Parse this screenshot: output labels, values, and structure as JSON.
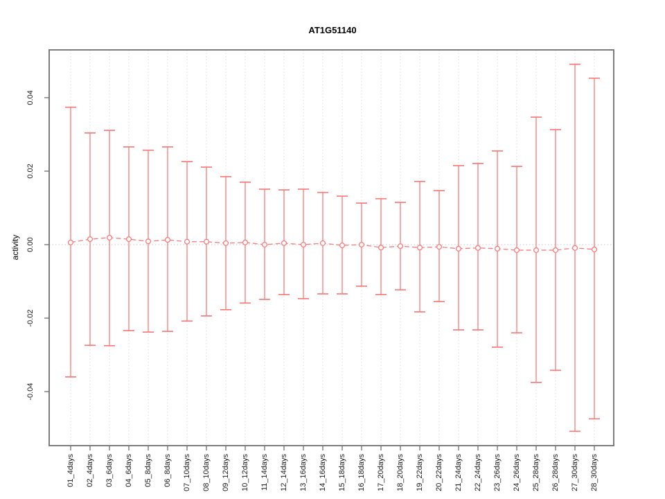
{
  "chart_data": {
    "type": "line",
    "subtype": "errorbar",
    "title": "AT1G51140",
    "xlabel": "",
    "ylabel": "activity",
    "categories": [
      "01_4days",
      "02_4days",
      "03_6days",
      "04_6days",
      "05_8days",
      "06_8days",
      "07_10days",
      "08_10days",
      "09_12days",
      "10_12days",
      "11_14days",
      "12_14days",
      "13_16days",
      "14_16days",
      "15_18days",
      "16_18days",
      "17_20days",
      "18_20days",
      "19_22days",
      "20_22days",
      "21_24days",
      "22_24days",
      "23_26days",
      "24_26days",
      "25_28days",
      "26_28days",
      "27_30days",
      "28_30days"
    ],
    "series": [
      {
        "name": "activity",
        "values": [
          0.0006,
          0.0015,
          0.0019,
          0.0015,
          0.0009,
          0.0013,
          0.0008,
          0.0008,
          0.0004,
          0.0006,
          0.0,
          0.0004,
          0.0,
          0.0004,
          -0.0002,
          0.0,
          -0.0008,
          -0.0004,
          -0.0008,
          -0.0006,
          -0.0011,
          -0.0009,
          -0.0011,
          -0.0015,
          -0.0015,
          -0.0015,
          -0.0009,
          -0.0013
        ],
        "upper": [
          0.0374,
          0.0304,
          0.0311,
          0.0266,
          0.0257,
          0.0266,
          0.0226,
          0.0211,
          0.0185,
          0.017,
          0.0151,
          0.0149,
          0.0151,
          0.0142,
          0.0132,
          0.0113,
          0.0125,
          0.0115,
          0.0172,
          0.0147,
          0.0215,
          0.0221,
          0.0255,
          0.0213,
          0.0347,
          0.0313,
          0.0491,
          0.0453
        ],
        "lower": [
          -0.036,
          -0.0274,
          -0.0275,
          -0.0234,
          -0.0238,
          -0.0236,
          -0.0208,
          -0.0194,
          -0.0177,
          -0.0159,
          -0.0149,
          -0.0136,
          -0.0147,
          -0.0134,
          -0.0134,
          -0.0113,
          -0.0136,
          -0.0123,
          -0.0183,
          -0.0155,
          -0.0232,
          -0.0232,
          -0.0279,
          -0.024,
          -0.0375,
          -0.0342,
          -0.0508,
          -0.0474
        ]
      }
    ],
    "ylim": [
      -0.0547,
      0.053
    ],
    "yticks": [
      -0.04,
      -0.02,
      0,
      0.02,
      0.04
    ],
    "ytick_labels": [
      "-0.04",
      "-0.02",
      "0.00",
      "0.02",
      "0.04"
    ],
    "grid": "vertical dotted line per category, dotted horizontal line at 0",
    "legend": "none",
    "marker": "open-circle",
    "line_style": "dashed",
    "error_bars": true,
    "colors": {
      "series": "#f87a7a",
      "grid": "#d9d9d9",
      "zero_line": "#c6c6c6",
      "box": "#6e6e6e",
      "text": "#1a1a1a",
      "background": "#ffffff"
    }
  }
}
